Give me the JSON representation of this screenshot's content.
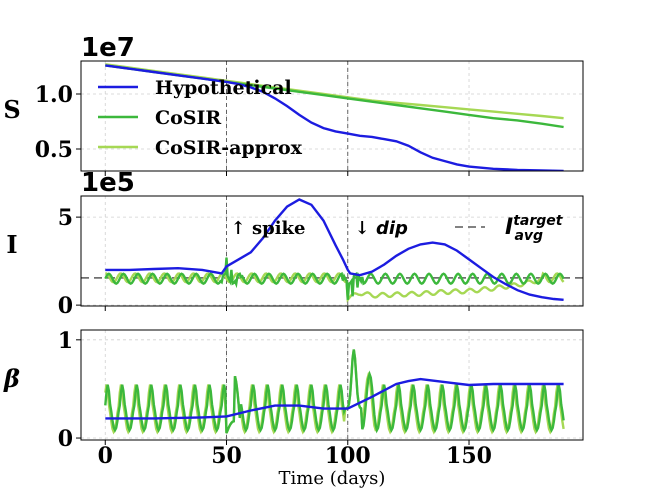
{
  "chart_data": [
    {
      "type": "line",
      "panel": "S",
      "ylabel": "S",
      "offset_label": "1e7",
      "ylim": [
        0.3,
        1.3
      ],
      "yticks": [
        {
          "v": 0.5,
          "label": "0.5"
        },
        {
          "v": 1.0,
          "label": "1.0"
        }
      ],
      "legend": {
        "placement": "upper-left",
        "entries": [
          "Hypothetical",
          "CoSIR",
          "CoSIR-approx"
        ]
      },
      "series": [
        {
          "name": "Hypothetical",
          "color": "#1c1ce0",
          "points": [
            [
              0,
              1.26
            ],
            [
              10,
              1.23
            ],
            [
              20,
              1.2
            ],
            [
              30,
              1.17
            ],
            [
              40,
              1.14
            ],
            [
              50,
              1.11
            ],
            [
              55,
              1.09
            ],
            [
              60,
              1.06
            ],
            [
              65,
              1.02
            ],
            [
              70,
              0.96
            ],
            [
              75,
              0.89
            ],
            [
              80,
              0.81
            ],
            [
              85,
              0.74
            ],
            [
              90,
              0.69
            ],
            [
              95,
              0.66
            ],
            [
              100,
              0.64
            ],
            [
              105,
              0.62
            ],
            [
              110,
              0.61
            ],
            [
              115,
              0.59
            ],
            [
              120,
              0.57
            ],
            [
              125,
              0.53
            ],
            [
              130,
              0.47
            ],
            [
              135,
              0.42
            ],
            [
              140,
              0.39
            ],
            [
              145,
              0.36
            ],
            [
              150,
              0.34
            ],
            [
              160,
              0.32
            ],
            [
              170,
              0.31
            ],
            [
              180,
              0.305
            ],
            [
              189,
              0.3
            ]
          ]
        },
        {
          "name": "CoSIR",
          "color": "#3cb83c",
          "points": [
            [
              0,
              1.26
            ],
            [
              10,
              1.23
            ],
            [
              20,
              1.2
            ],
            [
              30,
              1.17
            ],
            [
              40,
              1.14
            ],
            [
              50,
              1.11
            ],
            [
              60,
              1.08
            ],
            [
              70,
              1.05
            ],
            [
              80,
              1.02
            ],
            [
              90,
              0.99
            ],
            [
              100,
              0.96
            ],
            [
              110,
              0.93
            ],
            [
              120,
              0.9
            ],
            [
              130,
              0.87
            ],
            [
              140,
              0.84
            ],
            [
              150,
              0.81
            ],
            [
              160,
              0.78
            ],
            [
              170,
              0.76
            ],
            [
              180,
              0.73
            ],
            [
              189,
              0.7
            ]
          ]
        },
        {
          "name": "CoSIR-approx",
          "color": "#a6d854",
          "points": [
            [
              0,
              1.27
            ],
            [
              10,
              1.24
            ],
            [
              20,
              1.21
            ],
            [
              30,
              1.18
            ],
            [
              40,
              1.15
            ],
            [
              50,
              1.12
            ],
            [
              60,
              1.09
            ],
            [
              70,
              1.06
            ],
            [
              80,
              1.03
            ],
            [
              90,
              1.0
            ],
            [
              100,
              0.97
            ],
            [
              110,
              0.94
            ],
            [
              120,
              0.92
            ],
            [
              130,
              0.9
            ],
            [
              140,
              0.88
            ],
            [
              150,
              0.86
            ],
            [
              160,
              0.84
            ],
            [
              170,
              0.82
            ],
            [
              180,
              0.8
            ],
            [
              189,
              0.78
            ]
          ]
        }
      ]
    },
    {
      "type": "line",
      "panel": "I",
      "ylabel": "I",
      "offset_label": "1e5",
      "ylim": [
        -0.05,
        6.2
      ],
      "yticks": [
        {
          "v": 0,
          "label": "0"
        },
        {
          "v": 5,
          "label": "5"
        }
      ],
      "target_line": {
        "value": 1.55,
        "color": "#707070",
        "style": "dashed"
      },
      "annotations": [
        {
          "arrow": "↑",
          "text": "spike",
          "x": 55
        },
        {
          "arrow": "↓",
          "text": "dip",
          "x": 102
        }
      ],
      "legend": {
        "placement": "upper-right",
        "main": "I",
        "sup": "target",
        "sub": "avg"
      },
      "series": [
        {
          "name": "Hypothetical",
          "color": "#1c1ce0",
          "points": [
            [
              0,
              2.0
            ],
            [
              10,
              2.0
            ],
            [
              20,
              2.05
            ],
            [
              30,
              2.1
            ],
            [
              40,
              2.0
            ],
            [
              48,
              1.8
            ],
            [
              50,
              2.2
            ],
            [
              55,
              2.6
            ],
            [
              60,
              3.0
            ],
            [
              65,
              3.8
            ],
            [
              70,
              4.8
            ],
            [
              75,
              5.6
            ],
            [
              80,
              6.0
            ],
            [
              85,
              5.7
            ],
            [
              90,
              4.8
            ],
            [
              95,
              3.4
            ],
            [
              98,
              2.6
            ],
            [
              100,
              2.0
            ],
            [
              101,
              1.8
            ],
            [
              105,
              1.7
            ],
            [
              110,
              1.9
            ],
            [
              115,
              2.3
            ],
            [
              120,
              2.8
            ],
            [
              125,
              3.2
            ],
            [
              130,
              3.45
            ],
            [
              135,
              3.55
            ],
            [
              140,
              3.45
            ],
            [
              145,
              3.1
            ],
            [
              150,
              2.6
            ],
            [
              155,
              2.1
            ],
            [
              160,
              1.6
            ],
            [
              165,
              1.2
            ],
            [
              170,
              0.85
            ],
            [
              175,
              0.6
            ],
            [
              180,
              0.45
            ],
            [
              185,
              0.35
            ],
            [
              189,
              0.3
            ]
          ]
        },
        {
          "name": "CoSIR",
          "color": "#3cb83c",
          "osc": {
            "center": 1.5,
            "amp": 0.28,
            "period": 6,
            "phase": 0
          },
          "events": [
            [
              48,
              1.3
            ],
            [
              50,
              2.7
            ],
            [
              52,
              2.0
            ],
            [
              54,
              1.2
            ],
            [
              56,
              1.6
            ],
            [
              98,
              1.4
            ],
            [
              100,
              0.3
            ],
            [
              102,
              0.5
            ],
            [
              104,
              1.0
            ],
            [
              106,
              1.6
            ]
          ]
        },
        {
          "name": "CoSIR-approx",
          "color": "#a6d854",
          "osc": {
            "center": 1.55,
            "amp": 0.25,
            "period": 6,
            "phase": 1.2
          },
          "low_segment": {
            "from": 100,
            "to": 170,
            "values": [
              [
                100,
                0.4
              ],
              [
                105,
                0.7
              ],
              [
                110,
                0.55
              ],
              [
                120,
                0.6
              ],
              [
                130,
                0.65
              ],
              [
                140,
                0.75
              ],
              [
                150,
                0.8
              ],
              [
                160,
                0.95
              ],
              [
                170,
                1.15
              ],
              [
                175,
                1.3
              ],
              [
                180,
                1.45
              ]
            ]
          }
        }
      ]
    },
    {
      "type": "line",
      "panel": "beta",
      "ylabel": "β",
      "ylim": [
        -0.02,
        1.1
      ],
      "yticks": [
        {
          "v": 0,
          "label": "0"
        },
        {
          "v": 1,
          "label": "1"
        }
      ],
      "xlabel": "Time (days)",
      "xlim": [
        -10,
        197
      ],
      "xticks": [
        {
          "v": 0,
          "label": "0"
        },
        {
          "v": 50,
          "label": "50"
        },
        {
          "v": 100,
          "label": "100"
        },
        {
          "v": 150,
          "label": "150"
        }
      ],
      "vlines": [
        50,
        100
      ],
      "series": [
        {
          "name": "Hypothetical",
          "color": "#1c1ce0",
          "points": [
            [
              0,
              0.2
            ],
            [
              20,
              0.2
            ],
            [
              40,
              0.21
            ],
            [
              50,
              0.22
            ],
            [
              60,
              0.28
            ],
            [
              70,
              0.33
            ],
            [
              80,
              0.33
            ],
            [
              90,
              0.3
            ],
            [
              100,
              0.3
            ],
            [
              110,
              0.42
            ],
            [
              120,
              0.55
            ],
            [
              125,
              0.58
            ],
            [
              130,
              0.6
            ],
            [
              140,
              0.57
            ],
            [
              150,
              0.54
            ],
            [
              160,
              0.55
            ],
            [
              170,
              0.55
            ],
            [
              189,
              0.55
            ]
          ]
        },
        {
          "name": "CoSIR",
          "color": "#3cb83c",
          "osc": {
            "center": 0.27,
            "amp": 0.21,
            "period": 6,
            "phase": 0.5
          }
        },
        {
          "name": "CoSIR-approx",
          "color": "#a6d854",
          "osc": {
            "center": 0.26,
            "amp": 0.22,
            "period": 6,
            "phase": 1.0
          }
        }
      ]
    }
  ]
}
